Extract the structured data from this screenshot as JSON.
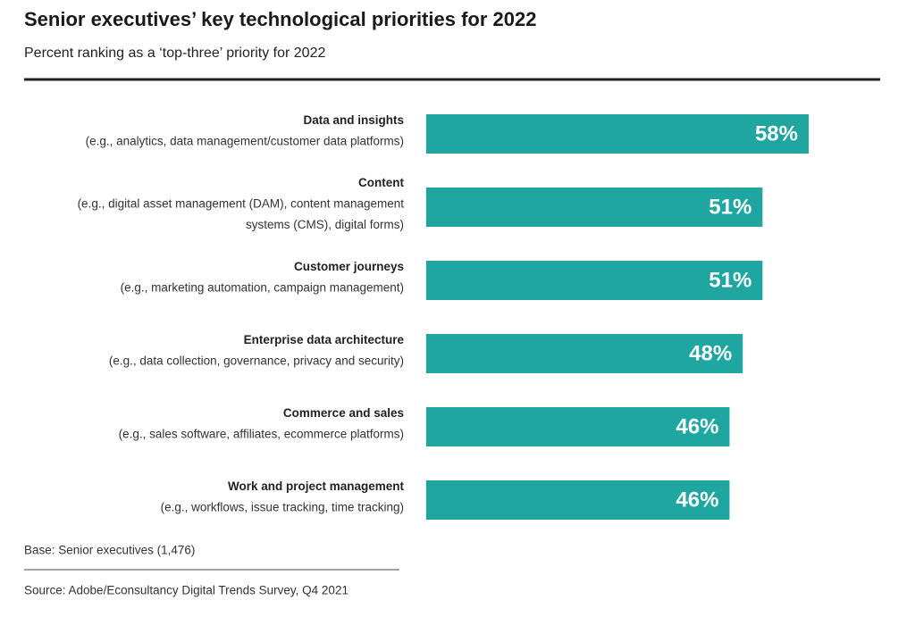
{
  "chart_data": {
    "type": "bar",
    "orientation": "horizontal",
    "title": "Senior executives’ key technological priorities for 2022",
    "subtitle": "Percent ranking as a ‘top-three’ priority for 2022",
    "categories": [
      "Data and insights",
      "Content",
      "Customer journeys",
      "Enterprise data architecture",
      "Commerce and sales",
      "Work and project management"
    ],
    "descriptions": [
      [
        "(e.g., analytics, data management/customer data platforms)"
      ],
      [
        "(e.g., digital asset management (DAM), content management",
        "systems (CMS), digital forms)"
      ],
      [
        "(e.g., marketing automation, campaign management)"
      ],
      [
        "(e.g., data collection, governance, privacy and security)"
      ],
      [
        "(e.g., sales software, affiliates, ecommerce platforms)"
      ],
      [
        "(e.g., workflows, issue tracking, time tracking)"
      ]
    ],
    "values": [
      58,
      51,
      51,
      48,
      46,
      46
    ],
    "value_labels": [
      "58%",
      "51%",
      "51%",
      "48%",
      "46%",
      "46%"
    ],
    "color": "#20a6a0",
    "base_note": "Base: Senior executives (1,476)",
    "source": "Source: Adobe/Econsultancy Digital Trends Survey, Q4 2021"
  }
}
